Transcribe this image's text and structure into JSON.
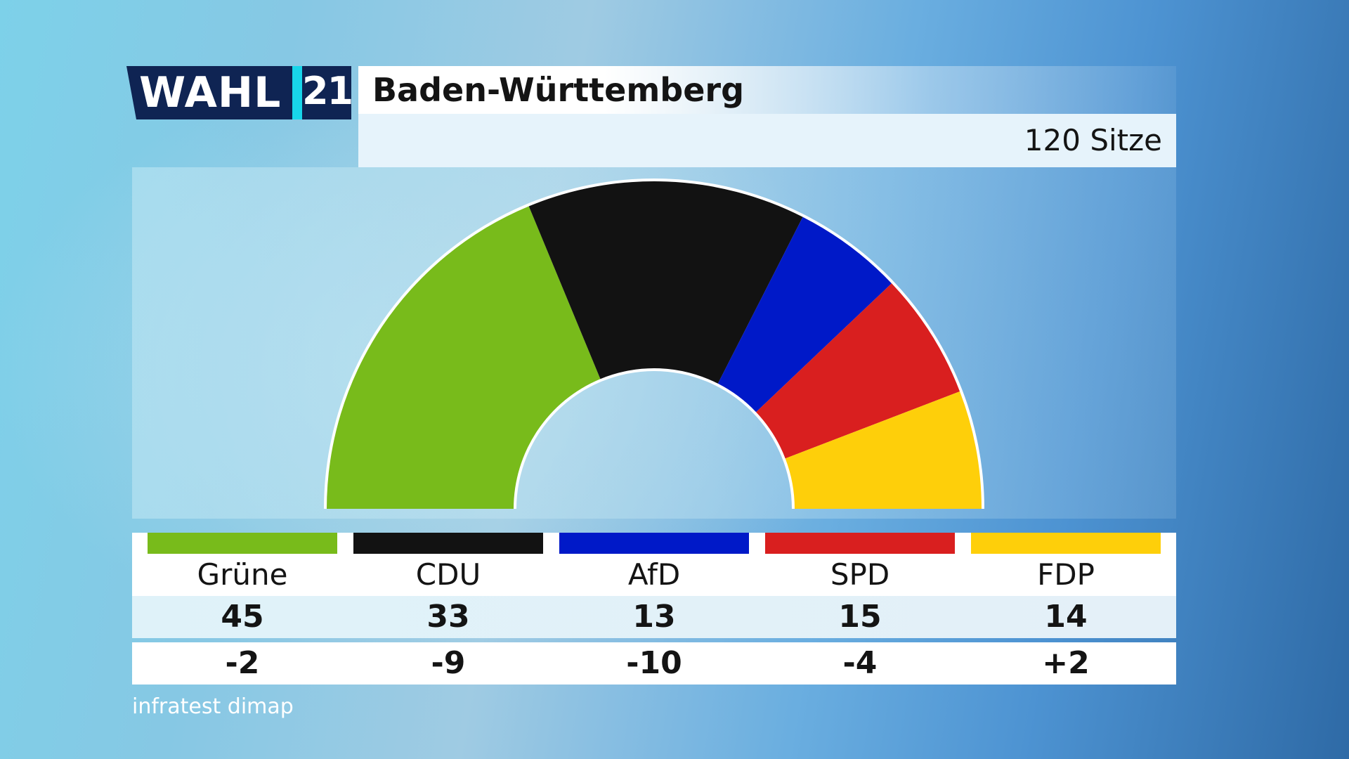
{
  "logo": {
    "word": "WAHL",
    "number": "21"
  },
  "header": {
    "title": "Baden-Württemberg",
    "seats_label": "120 Sitze"
  },
  "source": "infratest dimap",
  "colors": {
    "gruene": "#78bb1b",
    "cdu": "#121212",
    "afd": "#0019c8",
    "spd": "#d91f1f",
    "fdp": "#fecf0a"
  },
  "chart_data": {
    "type": "pie",
    "variant": "semicircle-parliament",
    "total_seats": 120,
    "parties": [
      {
        "name": "Grüne",
        "seats": 45,
        "diff": "-2",
        "color": "#78bb1b"
      },
      {
        "name": "CDU",
        "seats": 33,
        "diff": "-9",
        "color": "#121212"
      },
      {
        "name": "AfD",
        "seats": 13,
        "diff": "-10",
        "color": "#0019c8"
      },
      {
        "name": "SPD",
        "seats": 15,
        "diff": "-4",
        "color": "#d91f1f"
      },
      {
        "name": "FDP",
        "seats": 14,
        "diff": "+2",
        "color": "#fecf0a"
      }
    ]
  }
}
